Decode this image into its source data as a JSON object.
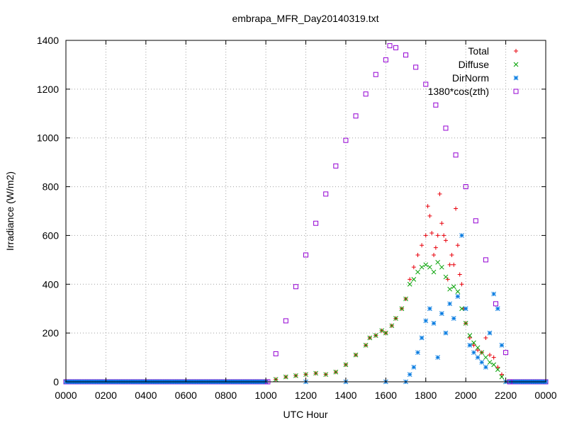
{
  "chart_data": {
    "type": "scatter",
    "title": "embrapa_MFR_Day20140319.txt",
    "xlabel": "UTC Hour",
    "ylabel": "Irradiance (W/m2)",
    "xlim": [
      0,
      2400
    ],
    "ylim": [
      0,
      1400
    ],
    "x_ticks": [
      "0000",
      "0200",
      "0400",
      "0600",
      "0800",
      "1000",
      "1200",
      "1400",
      "1600",
      "1800",
      "2000",
      "2200",
      "0000"
    ],
    "y_ticks": [
      "0",
      "200",
      "400",
      "600",
      "800",
      "1000",
      "1200",
      "1400"
    ],
    "grid": true,
    "legend_position": "top-right",
    "series": [
      {
        "name": "Total",
        "marker": "plus",
        "color": "#e8000b",
        "x": [
          1000,
          1050,
          1100,
          1150,
          1200,
          1250,
          1300,
          1350,
          1400,
          1450,
          1500,
          1520,
          1550,
          1580,
          1600,
          1630,
          1650,
          1680,
          1700,
          1720,
          1740,
          1760,
          1780,
          1800,
          1810,
          1820,
          1830,
          1840,
          1850,
          1860,
          1870,
          1880,
          1890,
          1900,
          1910,
          1920,
          1930,
          1940,
          1950,
          1960,
          1970,
          1980,
          1990,
          2000,
          2020,
          2040,
          2060,
          2080,
          2100,
          2120,
          2140,
          2160,
          2180,
          2200
        ],
        "y": [
          0,
          10,
          20,
          25,
          30,
          35,
          30,
          40,
          70,
          110,
          150,
          180,
          190,
          210,
          200,
          230,
          260,
          300,
          340,
          420,
          470,
          520,
          560,
          600,
          720,
          680,
          610,
          520,
          550,
          600,
          770,
          650,
          600,
          580,
          420,
          480,
          520,
          480,
          710,
          560,
          440,
          400,
          300,
          240,
          180,
          150,
          130,
          120,
          180,
          110,
          100,
          60,
          30,
          0
        ]
      },
      {
        "name": "Diffuse",
        "marker": "cross",
        "color": "#00a000",
        "x": [
          1000,
          1050,
          1100,
          1150,
          1200,
          1250,
          1300,
          1350,
          1400,
          1450,
          1500,
          1520,
          1550,
          1580,
          1600,
          1630,
          1650,
          1680,
          1700,
          1720,
          1740,
          1760,
          1780,
          1800,
          1820,
          1840,
          1860,
          1880,
          1900,
          1920,
          1940,
          1960,
          1980,
          2000,
          2020,
          2040,
          2060,
          2080,
          2100,
          2120,
          2140,
          2160,
          2180,
          2200
        ],
        "y": [
          0,
          10,
          20,
          25,
          30,
          35,
          30,
          40,
          70,
          110,
          150,
          180,
          190,
          210,
          200,
          230,
          260,
          300,
          340,
          400,
          420,
          450,
          470,
          480,
          470,
          450,
          490,
          470,
          430,
          380,
          390,
          370,
          300,
          240,
          190,
          160,
          140,
          120,
          100,
          80,
          70,
          50,
          20,
          0
        ]
      },
      {
        "name": "DirNorm",
        "marker": "star",
        "color": "#0078e0",
        "x": [
          1000,
          1200,
          1400,
          1600,
          1700,
          1720,
          1740,
          1760,
          1780,
          1800,
          1820,
          1840,
          1860,
          1880,
          1900,
          1920,
          1940,
          1960,
          1980,
          2000,
          2020,
          2040,
          2060,
          2080,
          2100,
          2120,
          2140,
          2160,
          2180,
          2200
        ],
        "y": [
          0,
          0,
          0,
          0,
          0,
          30,
          60,
          120,
          180,
          250,
          300,
          240,
          100,
          280,
          200,
          320,
          260,
          350,
          600,
          300,
          150,
          120,
          100,
          80,
          60,
          200,
          360,
          300,
          150,
          0
        ]
      },
      {
        "name": "1380*cos(zth)",
        "marker": "square",
        "color": "#9400d3",
        "x": [
          1010,
          1050,
          1100,
          1150,
          1200,
          1250,
          1300,
          1350,
          1400,
          1450,
          1500,
          1550,
          1600,
          1620,
          1650,
          1700,
          1750,
          1800,
          1850,
          1900,
          1950,
          2000,
          2050,
          2100,
          2150,
          2200,
          2220
        ],
        "y": [
          0,
          115,
          250,
          390,
          520,
          650,
          770,
          885,
          990,
          1090,
          1180,
          1260,
          1320,
          1378,
          1370,
          1340,
          1290,
          1220,
          1135,
          1040,
          930,
          800,
          660,
          500,
          320,
          120,
          0
        ]
      }
    ]
  }
}
